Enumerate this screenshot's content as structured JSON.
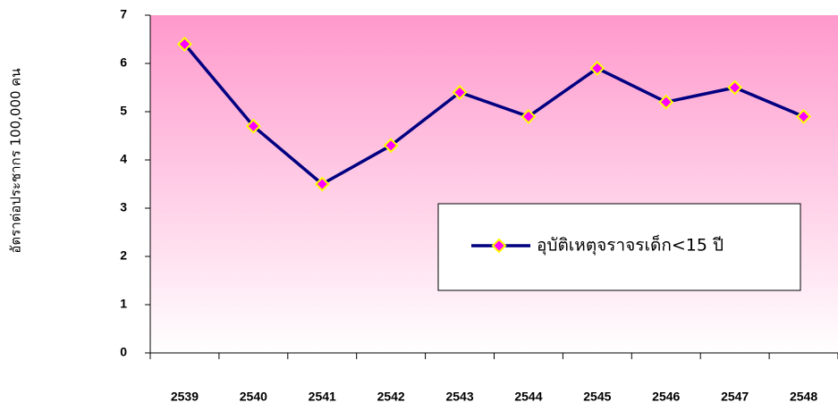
{
  "chart_data": {
    "type": "line",
    "y_label": "อัตราต่อประชากร 100,000 คน",
    "categories": [
      "2539",
      "2540",
      "2541",
      "2542",
      "2543",
      "2544",
      "2545",
      "2546",
      "2547",
      "2548"
    ],
    "series": [
      {
        "name": "อุบัติเหตุจราจรเด็ก<15 ปี",
        "color": "#000080",
        "marker_color": "#ff00ff",
        "marker_edge": "#ffff00",
        "values": [
          6.4,
          4.7,
          3.5,
          4.3,
          5.4,
          4.9,
          5.9,
          5.2,
          5.5,
          4.9
        ]
      }
    ],
    "ylim": [
      0,
      7
    ],
    "yticks": [
      0,
      1,
      2,
      3,
      4,
      5,
      6,
      7
    ],
    "background": [
      "#ff99cc",
      "#ffffff"
    ],
    "legend_position": "center-right"
  }
}
